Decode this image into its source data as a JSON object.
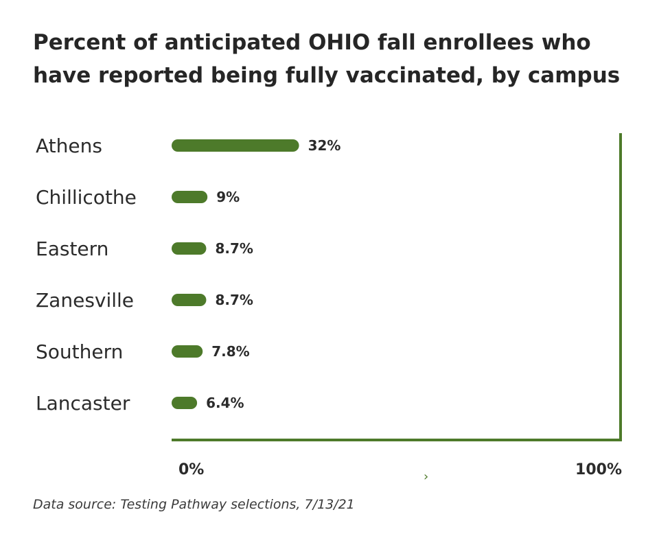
{
  "title_lines": [
    "Percent of anticipated OHIO fall enrollees who",
    "have reported being fully vaccinated, by campus"
  ],
  "source": "Data source: Testing Pathway selections, 7/13/21",
  "chevron": "›",
  "colors": {
    "bar": "#4d7a2a",
    "axis": "#4d7a2a",
    "text": "#2b2b2b"
  },
  "chart_data": {
    "type": "bar",
    "orientation": "horizontal",
    "title": "Percent of anticipated OHIO fall enrollees who have reported being fully vaccinated, by campus",
    "categories": [
      "Athens",
      "Chillicothe",
      "Eastern",
      "Zanesville",
      "Southern",
      "Lancaster"
    ],
    "values": [
      32,
      9,
      8.7,
      8.7,
      7.8,
      6.4
    ],
    "value_labels": [
      "32%",
      "9%",
      "8.7%",
      "8.7%",
      "7.8%",
      "6.4%"
    ],
    "xlim": [
      0,
      100
    ],
    "x_tick_labels": [
      "0%",
      "100%"
    ],
    "xlabel": "",
    "ylabel": "",
    "grid": false,
    "legend": "none"
  }
}
